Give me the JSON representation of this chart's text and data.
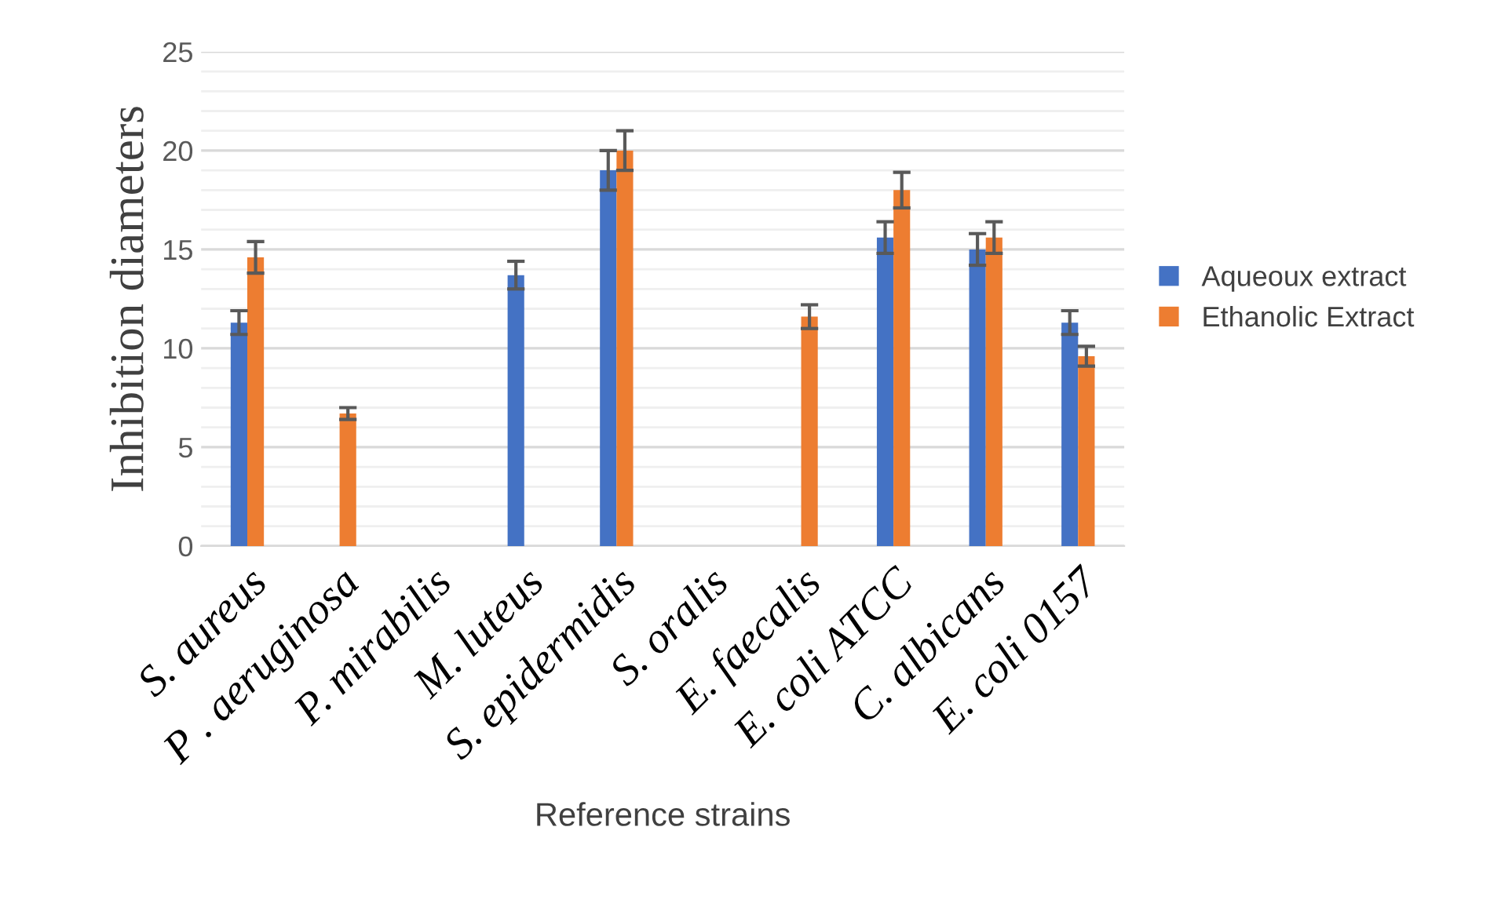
{
  "chart_data": {
    "type": "bar",
    "xlabel": "Reference strains",
    "ylabel": "Inhibition diameters",
    "categories": [
      "S. aureus",
      "P . aeruginosa",
      "P. mirabilis",
      "M. luteus",
      "S. epidermidis",
      "S. oralis",
      "E. faecalis",
      "E. coli ATCC",
      "C. albicans",
      "E. coli 0157"
    ],
    "series": [
      {
        "name": "Aqueoux extract",
        "color": "#4472c4",
        "values": [
          11.3,
          0,
          0,
          13.7,
          19.0,
          0,
          0,
          15.6,
          15.0,
          11.3
        ],
        "errors": [
          0.6,
          null,
          null,
          0.7,
          1.0,
          null,
          null,
          0.8,
          0.8,
          0.6
        ]
      },
      {
        "name": "Ethanolic Extract",
        "color": "#ed7d31",
        "values": [
          14.6,
          6.7,
          0,
          0,
          20.0,
          0,
          11.6,
          18.0,
          15.6,
          9.6
        ],
        "errors": [
          0.8,
          0.3,
          null,
          null,
          1.0,
          null,
          0.6,
          0.9,
          0.8,
          0.5
        ]
      }
    ],
    "ylim": [
      0,
      25
    ],
    "yticks": [
      0,
      5,
      10,
      15,
      20,
      25
    ],
    "grid": "y",
    "legend": "right"
  }
}
